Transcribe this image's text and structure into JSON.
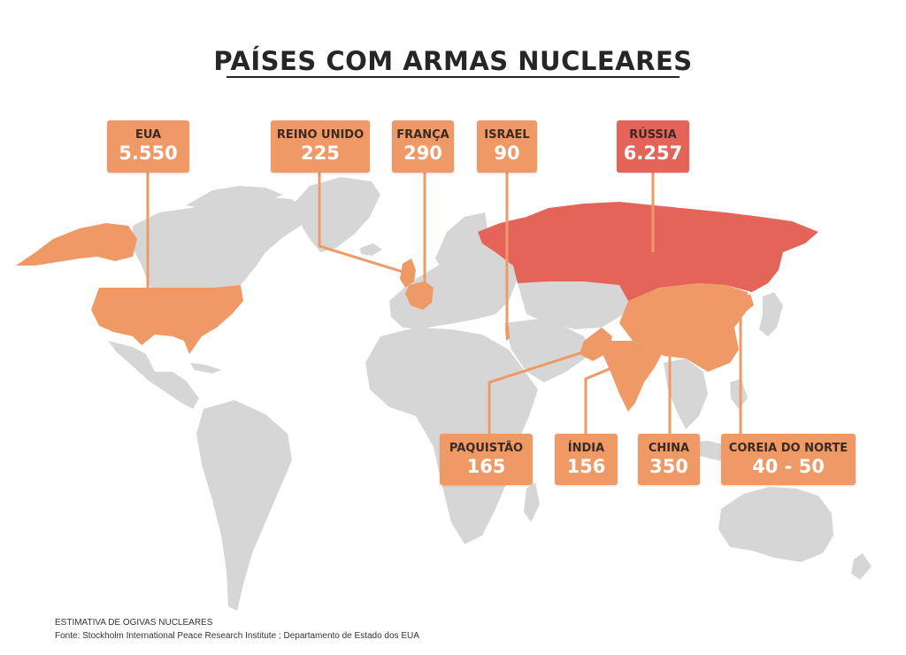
{
  "title": "PAÍSES COM ARMAS NUCLEARES",
  "colors": {
    "land": "#d6d6d6",
    "nuclear": "#ee9966",
    "russia": "#e5645a",
    "leader": "#ee9966"
  },
  "countries": {
    "eua": {
      "name": "EUA",
      "value": "5.550"
    },
    "reino_unido": {
      "name": "REINO UNIDO",
      "value": "225"
    },
    "franca": {
      "name": "FRANÇA",
      "value": "290"
    },
    "israel": {
      "name": "ISRAEL",
      "value": "90"
    },
    "russia": {
      "name": "RÚSSIA",
      "value": "6.257"
    },
    "paquistao": {
      "name": "PAQUISTÃO",
      "value": "165"
    },
    "india": {
      "name": "ÍNDIA",
      "value": "156"
    },
    "china": {
      "name": "CHINA",
      "value": "350"
    },
    "coreia_norte": {
      "name": "COREIA DO NORTE",
      "value": "40 - 50"
    }
  },
  "footer": {
    "line1": "ESTIMATIVA DE OGIVAS NUCLEARES",
    "line2": "Fonte: Stockholm International Peace Research Institute ; Departamento de Estado dos EUA"
  }
}
